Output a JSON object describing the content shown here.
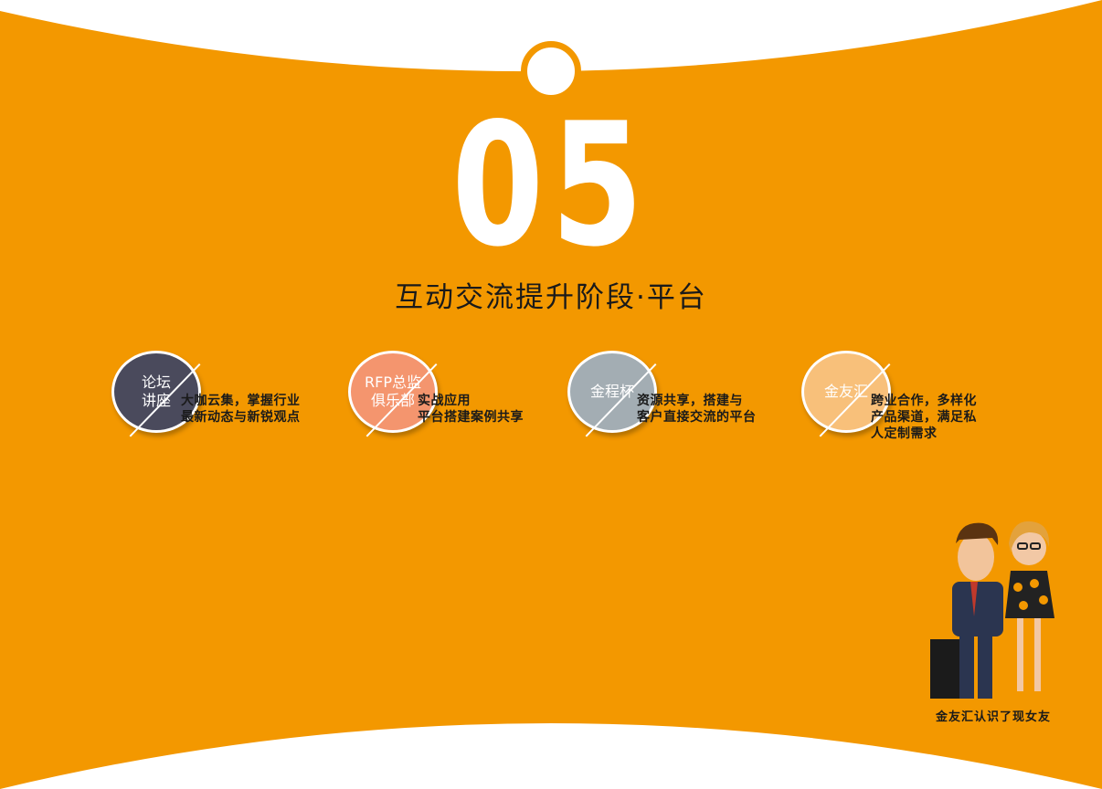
{
  "colors": {
    "background": "#f39800",
    "white": "#ffffff",
    "text": "#1a1a1a"
  },
  "header": {
    "number": "05",
    "subtitle": "互动交流提升阶段·平台"
  },
  "features": [
    {
      "label": "论坛\n讲座",
      "desc": "大咖云集，掌握行业\n最新动态与新锐观点",
      "color": "#4a4a5c"
    },
    {
      "label": "RFP总监\n俱乐部",
      "desc": "实战应用\n平台搭建案例共享",
      "color": "#f4956e"
    },
    {
      "label": "金程杯",
      "desc": "资源共享，搭建与\n客户直接交流的平台",
      "color": "#a3adb3"
    },
    {
      "label": "金友汇",
      "desc": "跨业合作，多样化\n产品渠道，满足私\n人定制需求",
      "color": "#f8c07a"
    }
  ],
  "illustration": {
    "caption": "金友汇认识了现女友",
    "icon": "couple-illustration"
  }
}
